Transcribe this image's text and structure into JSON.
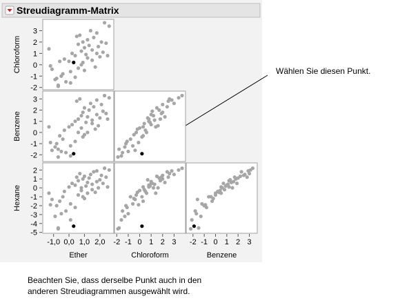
{
  "chart_data": {
    "type": "scatter_matrix",
    "title": "Streudiagramm-Matrix",
    "color": "#a6a6a6",
    "selected_color": "#000000",
    "selected": 0,
    "annotation": "Wählen Sie diesen Punkt.",
    "caption": [
      "Beachten Sie, dass derselbe Punkt auch in den",
      "anderen Streudiagrammen ausgewählt wird."
    ],
    "variables": [
      {
        "name": "Ether",
        "lim": [
          -1.7,
          2.9
        ],
        "ticks": [
          {
            "value": -1,
            "label": "-1,0"
          },
          {
            "value": 0,
            "label": "0,0"
          },
          {
            "value": 1,
            "label": "1,0"
          },
          {
            "value": 2,
            "label": "2,0"
          }
        ],
        "values": [
          0.3,
          -1.3,
          -1.1,
          -0.8,
          -0.6,
          -0.4,
          -0.3,
          -0.2,
          0.0,
          0.1,
          0.2,
          -0.7,
          0.4,
          0.5,
          0.6,
          0.6,
          0.7,
          0.8,
          0.8,
          0.9,
          1.0,
          1.0,
          1.1,
          1.2,
          1.2,
          1.3,
          1.4,
          1.5,
          1.5,
          1.6,
          1.7,
          1.8,
          1.8,
          1.9,
          2.0,
          2.1,
          2.2,
          2.3,
          2.4,
          2.5,
          2.6,
          -0.9,
          -0.5,
          0.1,
          0.4,
          -1.2,
          0.9,
          -0.7
        ]
      },
      {
        "name": "Chloroform",
        "lim": [
          -2.2,
          4.0
        ],
        "ticks": [
          -2,
          -1,
          0,
          1,
          2,
          3
        ],
        "values": [
          0.2,
          1.4,
          -0.4,
          -1.2,
          0.3,
          -0.8,
          0.5,
          -1.5,
          0.3,
          -0.6,
          1.0,
          -1.8,
          0.8,
          2.5,
          1.8,
          -0.3,
          2.6,
          1.2,
          0.0,
          2.0,
          1.5,
          -0.5,
          0.9,
          2.2,
          0.6,
          1.7,
          3.0,
          0.4,
          1.3,
          2.4,
          -0.2,
          1.0,
          2.8,
          1.6,
          0.7,
          2.0,
          1.1,
          3.7,
          1.9,
          0.8,
          3.4,
          -1.3,
          -1.0,
          -1.6,
          -1.1,
          -0.1,
          0.2,
          -1.9
        ]
      },
      {
        "name": "Benzene",
        "lim": [
          -2.6,
          3.7
        ],
        "ticks": [
          -2,
          -1,
          0,
          1,
          2,
          3
        ],
        "values": [
          -1.9,
          0.5,
          -1.6,
          -1.0,
          -0.3,
          -0.6,
          0.2,
          -1.8,
          0.5,
          -1.2,
          0.7,
          -1.5,
          1.0,
          2.8,
          1.2,
          0.0,
          3.0,
          1.5,
          0.4,
          1.8,
          2.2,
          -0.2,
          0.9,
          1.4,
          0.0,
          2.0,
          2.6,
          0.8,
          1.1,
          2.3,
          0.3,
          1.6,
          2.9,
          0.6,
          1.3,
          2.5,
          1.9,
          3.3,
          1.7,
          1.2,
          3.1,
          -1.3,
          -1.7,
          -2.1,
          -0.8,
          -0.9,
          -0.4,
          -2.2
        ]
      },
      {
        "name": "Hexane",
        "lim": [
          -5.1,
          2.8
        ],
        "ticks": [
          -5,
          -4,
          -3,
          -2,
          -1,
          0,
          1,
          2
        ],
        "values": [
          -4.3,
          -0.6,
          -1.3,
          -2.0,
          -1.5,
          -1.0,
          -0.4,
          -2.6,
          0.1,
          -1.8,
          0.5,
          -4.5,
          0.3,
          1.2,
          0.8,
          -0.8,
          1.6,
          0.0,
          -0.3,
          1.0,
          1.3,
          -1.2,
          0.2,
          0.6,
          -0.6,
          1.1,
          1.5,
          -0.2,
          0.4,
          1.8,
          -0.5,
          0.7,
          1.9,
          0.0,
          0.9,
          1.4,
          0.5,
          2.2,
          1.2,
          0.1,
          2.0,
          -3.2,
          -2.9,
          -3.6,
          -2.2,
          -1.9,
          -1.0,
          -4.6
        ]
      }
    ]
  }
}
